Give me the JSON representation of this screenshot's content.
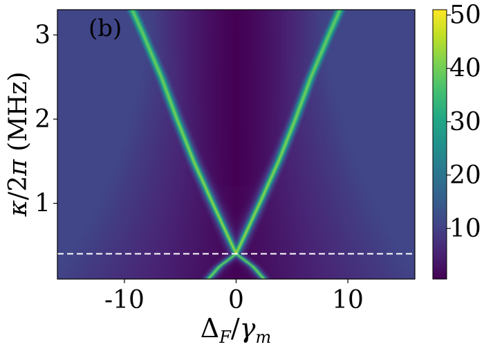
{
  "chart_data": {
    "type": "heatmap",
    "panel_label": "(b)",
    "panel_label_color": "#c01818",
    "xlabel": "Δ_F/γ_m",
    "ylabel": "κ/2π (MHz)",
    "xlim": [
      -16,
      16
    ],
    "ylim": [
      0.1,
      3.3
    ],
    "x_ticks": [
      -10,
      0,
      10
    ],
    "x_tick_labels": [
      "-10",
      "0",
      "10"
    ],
    "y_ticks": [
      1,
      2,
      3
    ],
    "y_tick_labels": [
      "1",
      "2",
      "3"
    ],
    "colormap": "viridis",
    "colorbar": {
      "range": [
        0.5,
        51
      ],
      "ticks": [
        10,
        20,
        30,
        40,
        50
      ],
      "tick_labels": [
        "10",
        "20",
        "30",
        "40",
        "50"
      ]
    },
    "resonance_branches": {
      "crossing_point": {
        "x": 0,
        "y": 0.4
      },
      "branch_points_above_crossing": [
        {
          "y": 0.4,
          "x": 0
        },
        {
          "y": 1.0,
          "x": 2.1
        },
        {
          "y": 1.5,
          "x": 3.8
        },
        {
          "y": 2.0,
          "x": 5.3
        },
        {
          "y": 2.5,
          "x": 6.7
        },
        {
          "y": 3.0,
          "x": 8.3
        },
        {
          "y": 3.3,
          "x": 9.3
        }
      ],
      "branch_points_below_crossing": [
        {
          "y": 0.4,
          "x": 0
        },
        {
          "y": 0.25,
          "x": 1.5
        },
        {
          "y": 0.1,
          "x": 2.5
        }
      ],
      "peak_value": 44
    },
    "reference_line": {
      "y": 0.4,
      "style": "dashed",
      "color": "#ffffff"
    }
  }
}
